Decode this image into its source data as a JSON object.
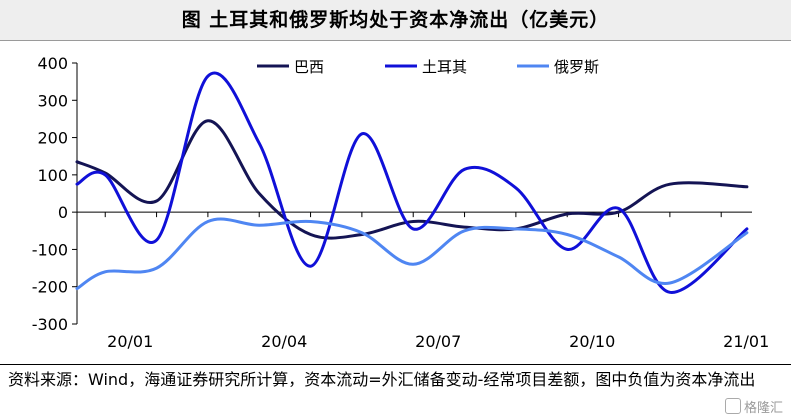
{
  "title": "图  土耳其和俄罗斯均处于资本净流出（亿美元）",
  "source_note": "资料来源：Wind，海通证券研究所计算，资本流动=外汇储备变动-经常项目差额，图中负值为资本净流出",
  "watermark": "格隆汇",
  "chart_data": {
    "type": "line",
    "title": "",
    "xlabel": "",
    "ylabel": "",
    "ylim": [
      -300,
      400
    ],
    "yticks": [
      400,
      300,
      200,
      100,
      0,
      -100,
      -200,
      -300
    ],
    "ytick_labels": [
      "400",
      "300",
      "200",
      "100",
      "0",
      "-100",
      "-200",
      "-300"
    ],
    "x_tick_labels": [
      {
        "label": "20/01",
        "x": 0
      },
      {
        "label": "20/04",
        "x": 3
      },
      {
        "label": "20/07",
        "x": 6
      },
      {
        "label": "20/10",
        "x": 9
      },
      {
        "label": "21/01",
        "x": 12
      }
    ],
    "x_range": [
      -0.55,
      12.6
    ],
    "legend_position": "top-center",
    "grid": false,
    "series": [
      {
        "name": "巴西",
        "color": "#141454",
        "x": [
          -0.55,
          0,
          1,
          2,
          3,
          4,
          5,
          6,
          7,
          8,
          9,
          10,
          11,
          12.5
        ],
        "values": [
          135,
          105,
          30,
          245,
          50,
          -60,
          -60,
          -25,
          -40,
          -45,
          -5,
          0,
          75,
          68
        ]
      },
      {
        "name": "土耳其",
        "color": "#1010d8",
        "x": [
          -0.55,
          0,
          1,
          2,
          3,
          4,
          5,
          6,
          7,
          8,
          9,
          10,
          11,
          12.5
        ],
        "values": [
          75,
          100,
          -75,
          365,
          185,
          -145,
          210,
          -45,
          115,
          65,
          -100,
          10,
          -215,
          -45
        ]
      },
      {
        "name": "俄罗斯",
        "color": "#4f86f2",
        "x": [
          -0.55,
          0,
          1,
          2,
          3,
          4,
          5,
          6,
          7,
          8,
          9,
          10,
          11,
          12.5
        ],
        "values": [
          -205,
          -160,
          -150,
          -25,
          -35,
          -25,
          -55,
          -140,
          -50,
          -45,
          -60,
          -120,
          -190,
          -55
        ]
      }
    ]
  }
}
